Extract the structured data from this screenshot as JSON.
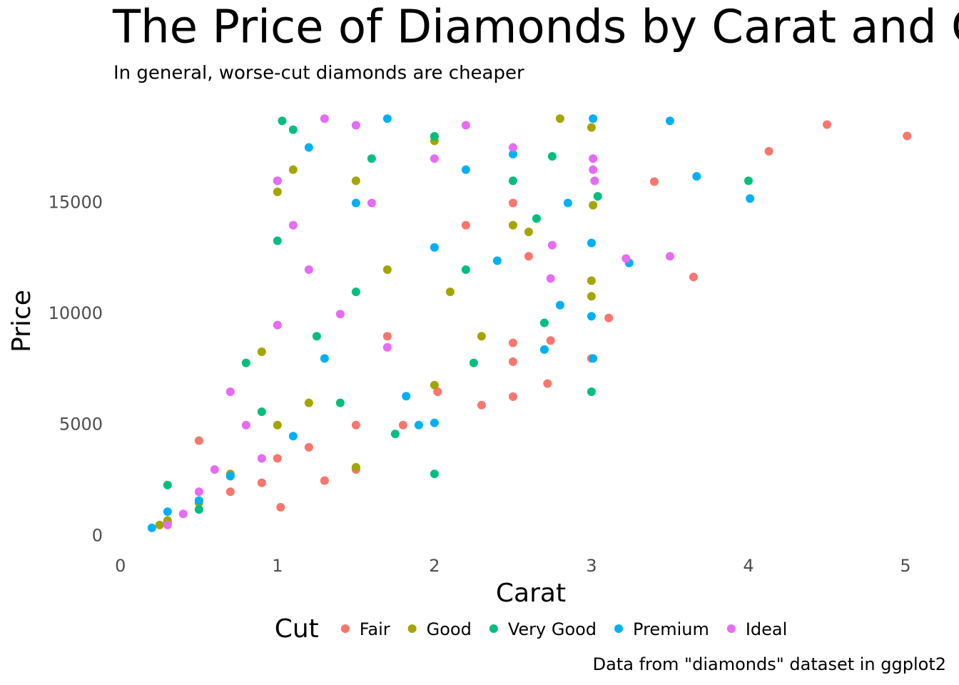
{
  "chart_data": {
    "type": "scatter",
    "title": "The Price of Diamonds by Carat and Cut",
    "subtitle": "In general, worse-cut diamonds are cheaper",
    "caption": "Data from \"diamonds\" dataset in ggplot2",
    "x_label": "Carat",
    "y_label": "Price",
    "legend_title": "Cut",
    "legend_position": "bottom",
    "xlim": [
      -0.04,
      5.05
    ],
    "ylim": [
      -600,
      19000
    ],
    "xticks": [
      0,
      1,
      2,
      3,
      4,
      5
    ],
    "yticks": [
      0,
      5000,
      10000,
      15000
    ],
    "grid": false,
    "series": [
      {
        "name": "Fair",
        "color": "#F8766D",
        "x": [
          5.01,
          4.5,
          4.13,
          3.4,
          3.65,
          3.11,
          2.74,
          2.5,
          2.5,
          2.72,
          2.5,
          2.02,
          1.5,
          1.02,
          0.5,
          0.3,
          0.7,
          1.2,
          1.5,
          2.0,
          3.0,
          2.3,
          1.8,
          0.9,
          2.2,
          1.7,
          2.5,
          1.0,
          2.6,
          1.3
        ],
        "y": [
          18018,
          18531,
          17329,
          15964,
          11668,
          9823,
          8807,
          8700,
          7854,
          6870,
          6280,
          6500,
          3000,
          1300,
          4300,
          600,
          2000,
          4000,
          5000,
          18000,
          8000,
          5900,
          5000,
          2400,
          14000,
          9000,
          15000,
          3500,
          12600,
          2500
        ]
      },
      {
        "name": "Good",
        "color": "#A3A500",
        "x": [
          2.8,
          3.0,
          3.01,
          3.0,
          3.0,
          1.5,
          2.0,
          0.9,
          1.0,
          1.5,
          2.0,
          2.3,
          0.25,
          0.5,
          0.7,
          1.1,
          2.5,
          1.2,
          1.7,
          2.6,
          0.3,
          1.0,
          2.1
        ],
        "y": [
          18800,
          18400,
          14900,
          11500,
          10800,
          16000,
          17800,
          8300,
          15500,
          3100,
          6800,
          9000,
          500,
          1500,
          2800,
          16500,
          14000,
          6000,
          12000,
          13700,
          700,
          5000,
          11000
        ]
      },
      {
        "name": "Very Good",
        "color": "#00BF7D",
        "x": [
          4.0,
          3.04,
          3.0,
          2.7,
          2.75,
          2.65,
          1.03,
          1.1,
          0.3,
          0.8,
          1.5,
          2.0,
          1.75,
          2.25,
          1.0,
          1.25,
          2.0,
          0.9,
          0.5,
          1.6,
          2.2,
          0.7,
          1.4,
          2.5
        ],
        "y": [
          16000,
          15300,
          6500,
          9600,
          17100,
          14300,
          18700,
          18300,
          2300,
          7800,
          11000,
          18000,
          4600,
          7800,
          13300,
          9000,
          2800,
          5600,
          1200,
          17000,
          12000,
          2700,
          6000,
          16000
        ]
      },
      {
        "name": "Premium",
        "color": "#00B0F6",
        "x": [
          3.5,
          4.01,
          3.67,
          3.24,
          3.01,
          3.0,
          3.0,
          3.01,
          2.8,
          2.7,
          2.85,
          2.5,
          0.2,
          0.3,
          1.5,
          1.0,
          1.9,
          2.0,
          1.82,
          1.2,
          1.7,
          2.0,
          1.3,
          0.7,
          0.5,
          2.4,
          1.1,
          2.2
        ],
        "y": [
          18700,
          15200,
          16200,
          12300,
          18800,
          13200,
          9900,
          8000,
          10400,
          8400,
          15000,
          17200,
          370,
          1100,
          15000,
          16000,
          5000,
          5100,
          6300,
          17500,
          18800,
          13000,
          8000,
          2700,
          1600,
          12400,
          4500,
          16500
        ]
      },
      {
        "name": "Ideal",
        "color": "#E76BF3",
        "x": [
          3.5,
          3.22,
          3.01,
          3.01,
          3.02,
          2.75,
          2.74,
          0.7,
          1.0,
          1.3,
          1.5,
          1.0,
          1.2,
          0.3,
          0.5,
          0.8,
          1.6,
          2.0,
          2.5,
          1.1,
          0.4,
          0.9,
          1.4,
          1.7,
          2.2,
          0.6
        ],
        "y": [
          12600,
          12500,
          16500,
          17000,
          16000,
          13100,
          11600,
          6500,
          16000,
          18800,
          18500,
          9500,
          12000,
          500,
          2000,
          5000,
          15000,
          17000,
          17500,
          14000,
          1000,
          3500,
          10000,
          8500,
          18500,
          3000
        ]
      }
    ]
  }
}
